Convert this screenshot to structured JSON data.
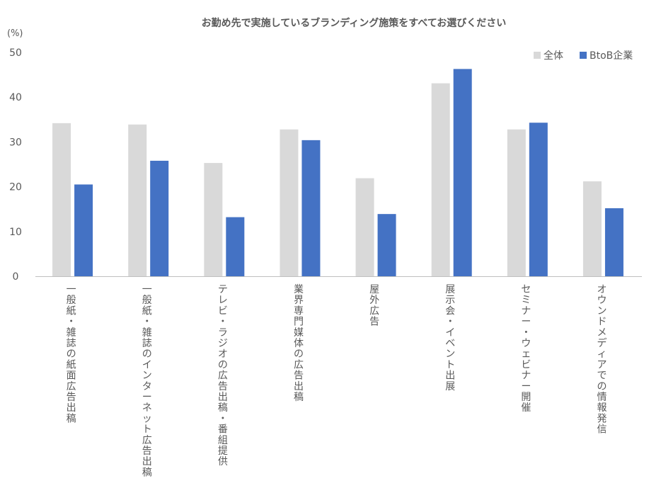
{
  "chart_data": {
    "type": "bar",
    "title": "お勤め先で実施しているブランディング施策をすべてお選びください",
    "unit_label": "(%)",
    "categories": [
      "一般紙・雑誌の紙面広告出稿",
      "一般紙・雑誌のインターネット広告出稿",
      "テレビ・ラジオの広告出稿・番組提供",
      "業界専門媒体の広告出稿",
      "屋外広告",
      "展示会・イベント出展",
      "セミナー・ウェビナー開催",
      "オウンドメディアでの情報発信"
    ],
    "series": [
      {
        "name": "全体",
        "color": "#d9d9d9",
        "values": [
          34.2,
          33.9,
          25.3,
          32.8,
          21.9,
          43.1,
          32.8,
          21.2
        ]
      },
      {
        "name": "BtoB企業",
        "color": "#4472c4",
        "values": [
          20.5,
          25.8,
          13.2,
          30.4,
          13.9,
          46.3,
          34.3,
          15.2
        ]
      }
    ],
    "ylim": [
      0,
      50
    ],
    "yticks": [
      0,
      10,
      20,
      30,
      40,
      50
    ],
    "legend_position": "top-right",
    "grid": false
  }
}
